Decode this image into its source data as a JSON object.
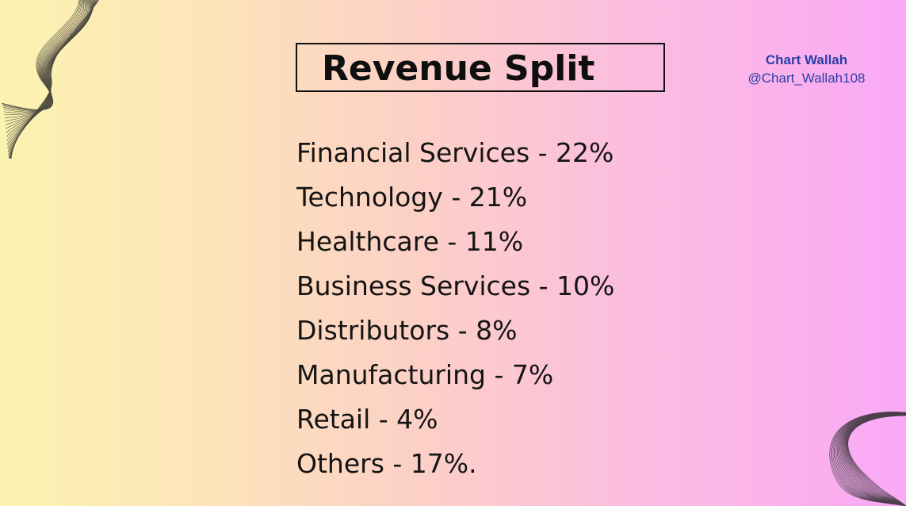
{
  "title": "Revenue Split",
  "brand": {
    "name": "Chart Wallah",
    "handle": "@Chart_Wallah108"
  },
  "segments": [
    {
      "label": "Financial Services",
      "value": 22,
      "text": "Financial Services - 22%"
    },
    {
      "label": "Technology",
      "value": 21,
      "text": "Technology - 21%"
    },
    {
      "label": "Healthcare",
      "value": 11,
      "text": "Healthcare - 11%"
    },
    {
      "label": "Business Services",
      "value": 10,
      "text": "Business Services - 10%"
    },
    {
      "label": "Distributors",
      "value": 8,
      "text": "Distributors - 8%"
    },
    {
      "label": "Manufacturing",
      "value": 7,
      "text": "Manufacturing - 7%"
    },
    {
      "label": "Retail",
      "value": 4,
      "text": "Retail - 4%"
    },
    {
      "label": "Others",
      "value": 17,
      "text": "Others - 17%."
    }
  ],
  "colors": {
    "background_left": "#fbf3b0",
    "background_right": "#f9a9f6",
    "text": "#141414",
    "brand": "#2a3fa6"
  }
}
